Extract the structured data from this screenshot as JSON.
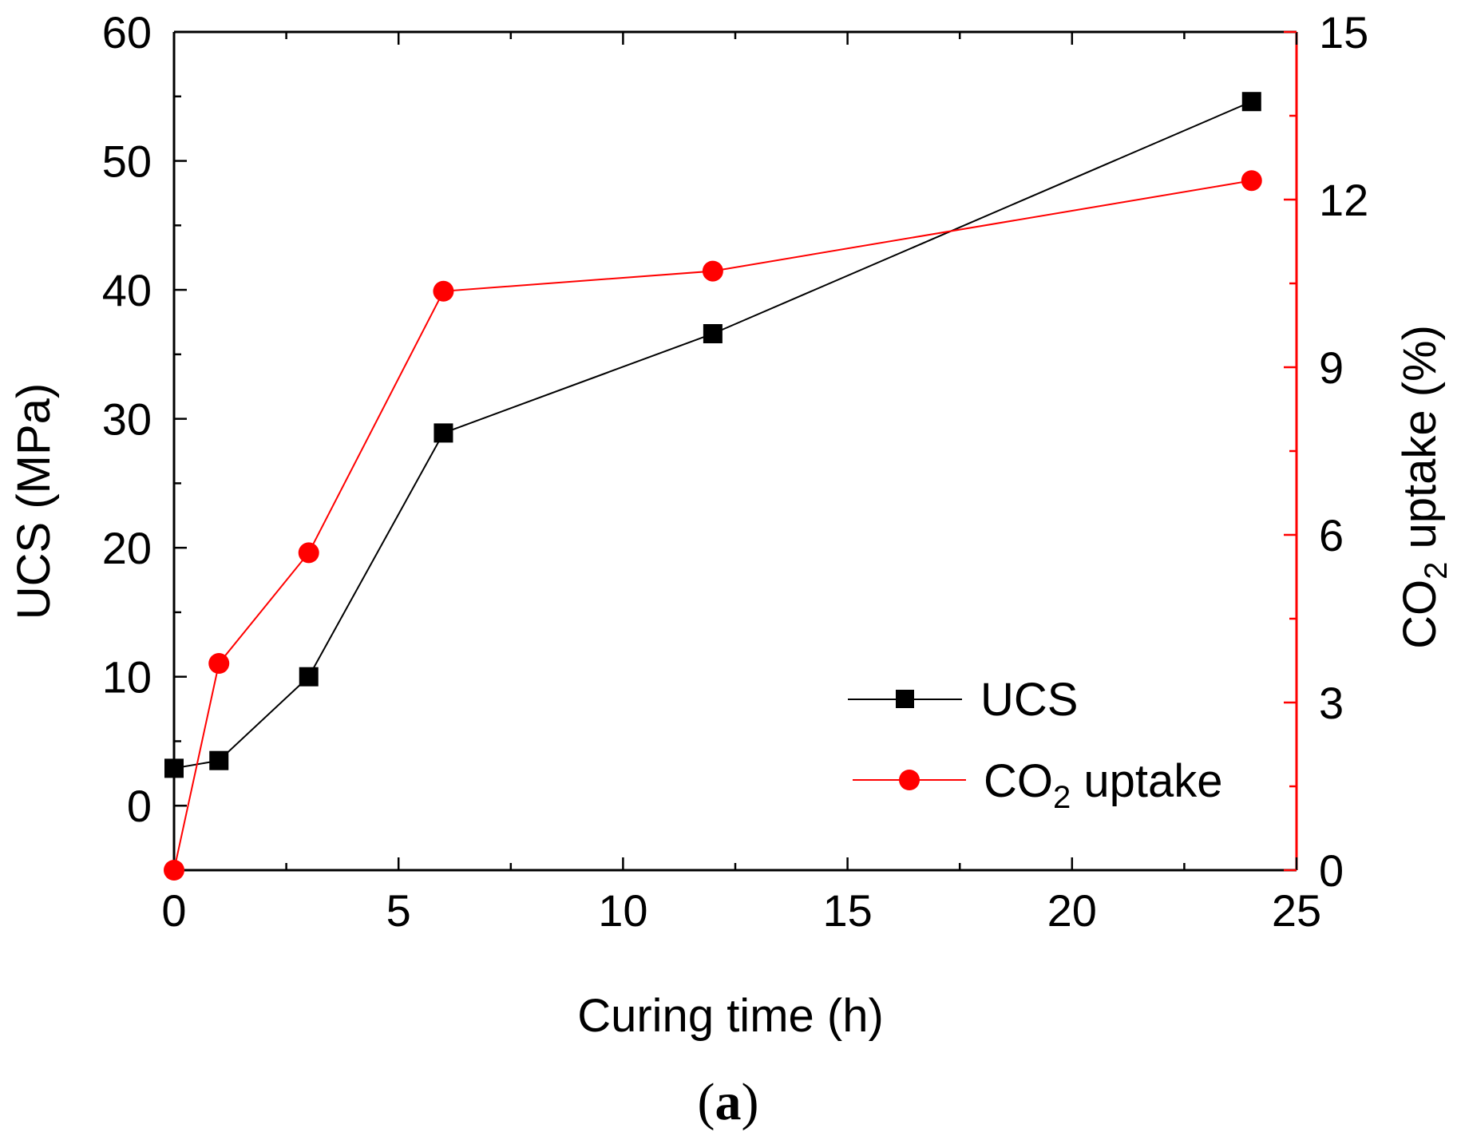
{
  "chart_data": {
    "type": "line",
    "x": [
      0,
      1,
      3,
      6,
      12,
      24
    ],
    "series": [
      {
        "name": "UCS",
        "axis": "left",
        "values": [
          2.9,
          3.5,
          10.0,
          28.9,
          36.6,
          54.6
        ],
        "color": "#000000",
        "marker": "square"
      },
      {
        "name": "CO2 uptake",
        "axis": "right",
        "values": [
          0.0,
          3.7,
          5.68,
          10.36,
          10.72,
          12.34
        ],
        "color": "#ff0000",
        "marker": "circle"
      }
    ],
    "xlabel": "Curing time (h)",
    "ylabel": "UCS (MPa)",
    "y2label_main": "CO",
    "y2label_sub": "2",
    "y2label_rest": " uptake (%)",
    "xlim": [
      0,
      25
    ],
    "ylim": [
      -5,
      60
    ],
    "y2lim": [
      0,
      15
    ],
    "xticks": [
      0,
      5,
      10,
      15,
      20,
      25
    ],
    "yticks": [
      0,
      10,
      20,
      30,
      40,
      50,
      60
    ],
    "y2ticks": [
      0,
      3,
      6,
      9,
      12,
      15
    ],
    "legend": {
      "position": "lower-right",
      "entries": [
        {
          "main": "UCS",
          "sub": "",
          "rest": ""
        },
        {
          "main": "CO",
          "sub": "2",
          "rest": " uptake"
        }
      ]
    },
    "grid": false
  },
  "caption": {
    "open": "(",
    "letter": "a",
    "close": ")"
  }
}
